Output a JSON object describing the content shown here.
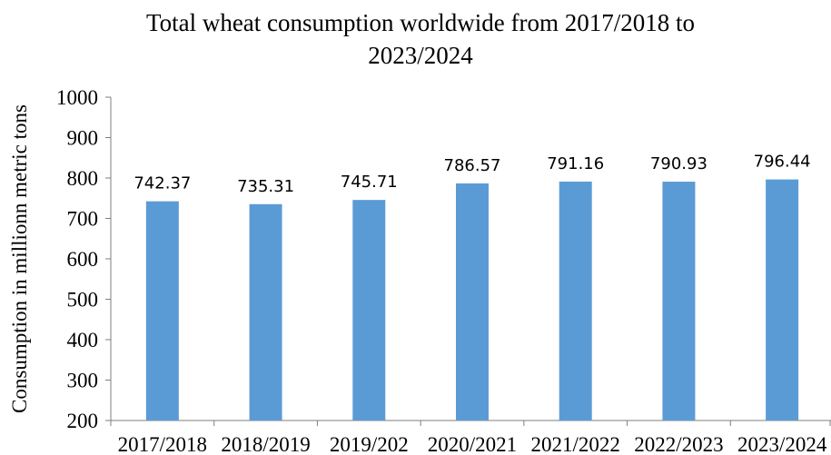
{
  "chart_data": {
    "type": "bar",
    "title_line1": "Total wheat consumption worldwide from 2017/2018 to",
    "title_line2": "2023/2024",
    "ylabel": "Consumption in millionn metric tons",
    "xlabel": "",
    "categories": [
      "2017/2018",
      "2018/2019",
      "2019/202",
      "2020/2021",
      "2021/2022",
      "2022/2023",
      "2023/2024"
    ],
    "values": [
      742.37,
      735.31,
      745.71,
      786.57,
      791.16,
      790.93,
      796.44
    ],
    "value_labels": [
      "742.37",
      "735.31",
      "745.71",
      "786.57",
      "791.16",
      "790.93",
      "796.44"
    ],
    "ylim": [
      200,
      1000
    ],
    "yticks": [
      200,
      300,
      400,
      500,
      600,
      700,
      800,
      900,
      1000
    ],
    "bar_color": "#5B9BD5",
    "grid": false,
    "legend": "none"
  }
}
